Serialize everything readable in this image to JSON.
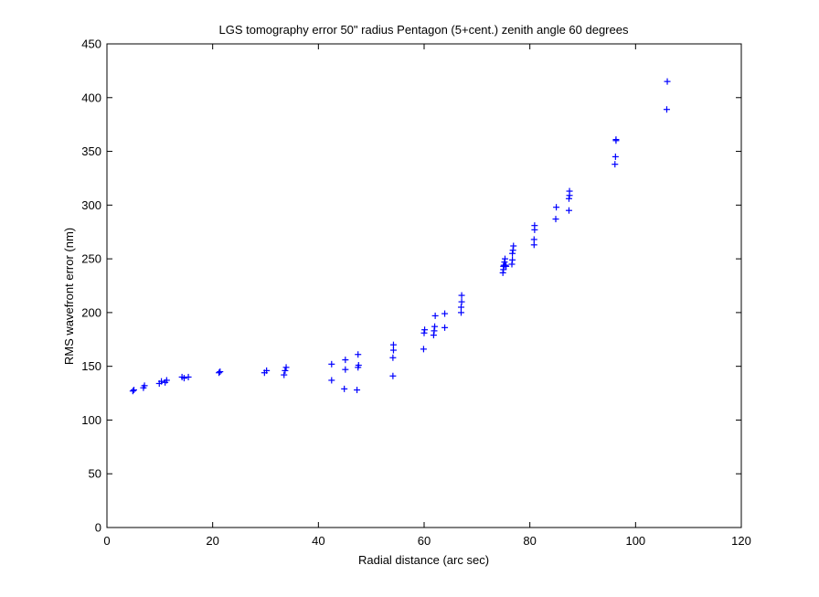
{
  "chart_data": {
    "type": "scatter",
    "title": "LGS tomography error 50\" radius Pentagon (5+cent.) zenith angle 60 degrees",
    "xlabel": "Radial distance (arc sec)",
    "ylabel": "RMS wavefront error (nm)",
    "xlim": [
      0,
      120
    ],
    "ylim": [
      0,
      450
    ],
    "xticks": [
      0,
      20,
      40,
      60,
      80,
      100,
      120
    ],
    "yticks": [
      0,
      50,
      100,
      150,
      200,
      250,
      300,
      350,
      400,
      450
    ],
    "xtick_labels": [
      "0",
      "20",
      "40",
      "60",
      "80",
      "100",
      "120"
    ],
    "ytick_labels": [
      "0",
      "50",
      "100",
      "150",
      "200",
      "250",
      "300",
      "350",
      "400",
      "450"
    ],
    "grid": false,
    "marker": "+",
    "color": "#0000ff",
    "series": [
      {
        "x": [
          4.9,
          5.1,
          6.9,
          7.1,
          9.9,
          10.3,
          11.0,
          11.3,
          14.2,
          14.6,
          15.4,
          21.2,
          21.4,
          29.8,
          30.2,
          33.5,
          33.7,
          33.9,
          42.5,
          42.5,
          44.9,
          45.1,
          45.1,
          47.3,
          47.5,
          47.6,
          47.5,
          54.1,
          54.1,
          54.2,
          54.2,
          59.9,
          60.0,
          60.1,
          61.8,
          61.9,
          62.0,
          62.1,
          63.9,
          63.9,
          67.0,
          67.0,
          67.1,
          67.1,
          74.9,
          75.0,
          75.0,
          75.1,
          75.2,
          75.3,
          75.4,
          75.5,
          76.6,
          76.7,
          76.7,
          76.8,
          76.9,
          80.8,
          80.8,
          80.9,
          80.9,
          84.9,
          85.0,
          87.4,
          87.4,
          87.5,
          87.5,
          96.1,
          96.2,
          96.3,
          96.3,
          105.9,
          106.0
        ],
        "y": [
          127,
          128,
          130,
          132,
          134,
          136,
          135,
          137,
          140,
          139,
          140,
          144,
          145,
          144,
          146,
          142,
          146,
          149,
          152,
          137,
          129,
          147,
          156,
          128,
          149,
          151,
          161,
          141,
          158,
          165,
          170,
          166,
          181,
          184,
          179,
          183,
          187,
          197,
          186,
          199,
          200,
          205,
          210,
          216,
          237,
          240,
          243,
          244,
          247,
          250,
          244,
          243,
          245,
          249,
          255,
          258,
          262,
          263,
          268,
          277,
          281,
          287,
          298,
          295,
          306,
          309,
          313,
          338,
          345,
          360,
          361,
          389,
          415
        ]
      }
    ]
  }
}
